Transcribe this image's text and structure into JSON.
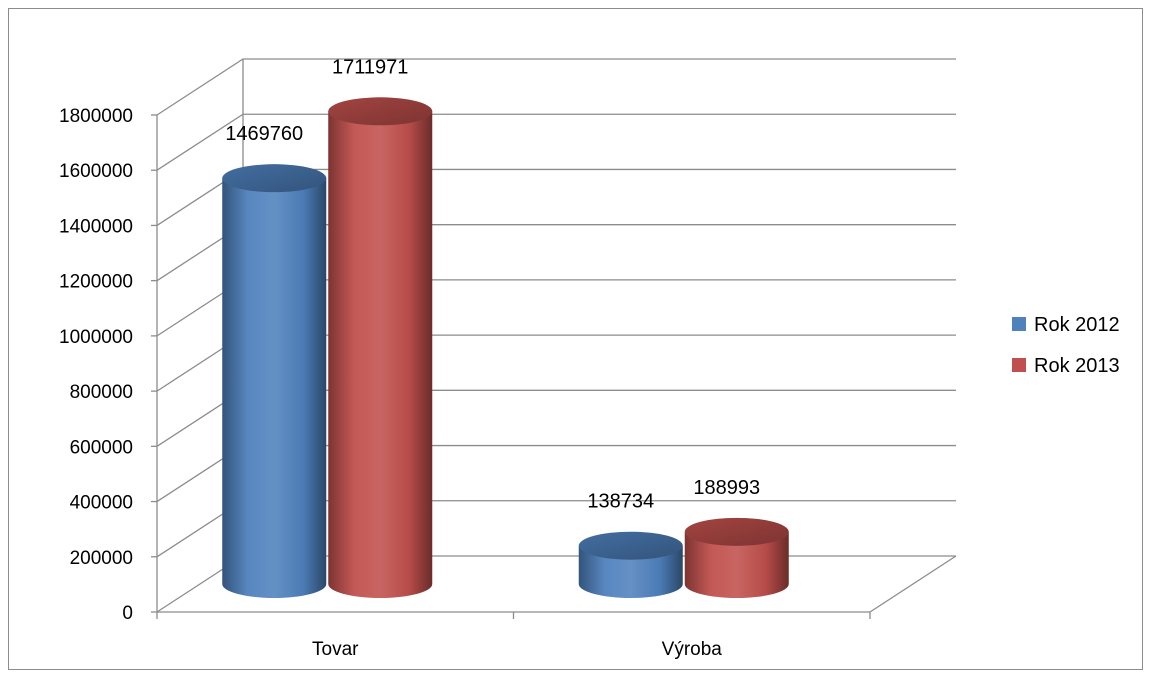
{
  "chart_data": {
    "type": "bar",
    "style": "3d-cylinder",
    "categories": [
      "Tovar",
      "Výroba"
    ],
    "series": [
      {
        "name": "Rok 2012",
        "values": [
          1469760,
          138734
        ],
        "color": "#4f81bd"
      },
      {
        "name": "Rok 2013",
        "values": [
          1711971,
          188993
        ],
        "color": "#c0504d"
      }
    ],
    "ylim": [
      0,
      1800000
    ],
    "y_ticks": [
      0,
      200000,
      400000,
      600000,
      800000,
      1000000,
      1200000,
      1400000,
      1600000,
      1800000
    ],
    "data_labels": true,
    "grid": true,
    "legend_position": "right",
    "title": "",
    "xlabel": "",
    "ylabel": ""
  }
}
